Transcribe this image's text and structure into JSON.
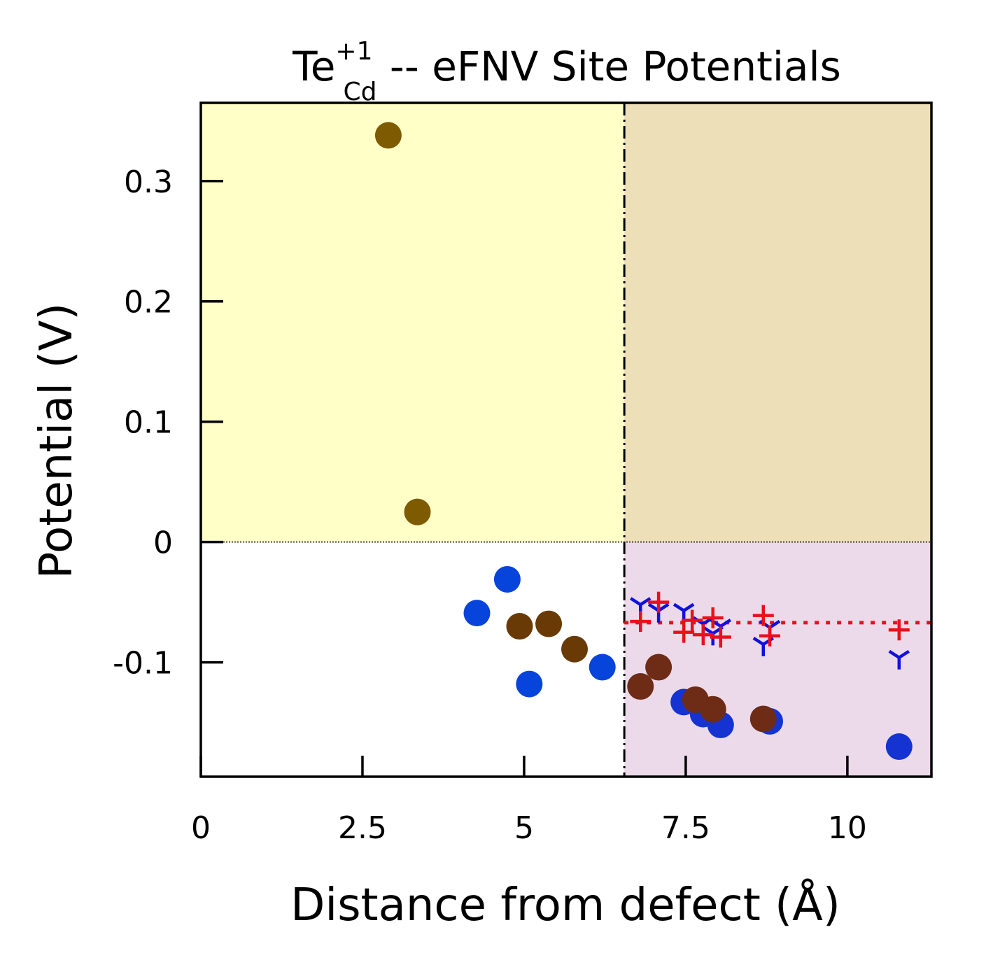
{
  "chart_data": {
    "type": "scatter",
    "title": {
      "base": "Te",
      "sup": "+1",
      "sub": "Cd",
      "rest": " -- eFNV Site Potentials"
    },
    "xlabel": "Distance from defect (Å)",
    "ylabel": "Potential (V)",
    "xlim": [
      0,
      11.3
    ],
    "ylim": [
      -0.195,
      0.365
    ],
    "xticks": [
      {
        "value": 0,
        "label": "0"
      },
      {
        "value": 2.5,
        "label": "2.5"
      },
      {
        "value": 5,
        "label": "5"
      },
      {
        "value": 7.5,
        "label": "7.5"
      },
      {
        "value": 10,
        "label": "10"
      }
    ],
    "yticks": [
      {
        "value": 0.3,
        "label": "0.3"
      },
      {
        "value": 0.2,
        "label": "0.2"
      },
      {
        "value": 0.1,
        "label": "0.1"
      },
      {
        "value": 0,
        "label": "0"
      },
      {
        "value": -0.1,
        "label": "-0.1"
      }
    ],
    "sampling_radius": 6.55,
    "average_potential": -0.067,
    "zero_line": 0,
    "regions": {
      "upper_left_color": "#ffffc8",
      "upper_right_color": "#ede0b8",
      "lower_left_color": "#ffffff",
      "lower_right_color": "#ecdaeb"
    },
    "colors": {
      "te_sites": "#7e5a00",
      "cd_sites_near": "#0744dc",
      "te_sites_near": "#6a3a06",
      "cd_sites_far": "#1533d0",
      "te_sites_far": "#6e2c16",
      "cross_marker": "#e8101a",
      "tri_marker": "#1010e0",
      "average_line": "#e8101a"
    },
    "series": [
      {
        "marker": "circle",
        "color_key": "te_sites",
        "points": [
          [
            2.9,
            0.338
          ],
          [
            3.35,
            0.025
          ]
        ]
      },
      {
        "marker": "circle",
        "color_key": "cd_sites_near",
        "points": [
          [
            4.27,
            -0.059
          ],
          [
            4.74,
            -0.031
          ],
          [
            5.08,
            -0.118
          ],
          [
            6.21,
            -0.104
          ]
        ]
      },
      {
        "marker": "circle",
        "color_key": "te_sites_near",
        "points": [
          [
            4.93,
            -0.07
          ],
          [
            5.38,
            -0.068
          ],
          [
            5.78,
            -0.089
          ]
        ]
      },
      {
        "marker": "circle",
        "color_key": "cd_sites_far",
        "points": [
          [
            7.47,
            -0.133
          ],
          [
            7.77,
            -0.143
          ],
          [
            8.04,
            -0.152
          ],
          [
            8.8,
            -0.149
          ],
          [
            10.8,
            -0.17
          ]
        ]
      },
      {
        "marker": "circle",
        "color_key": "te_sites_far",
        "points": [
          [
            6.8,
            -0.12
          ],
          [
            7.08,
            -0.104
          ],
          [
            7.65,
            -0.131
          ],
          [
            7.92,
            -0.139
          ],
          [
            8.7,
            -0.147
          ]
        ]
      },
      {
        "marker": "tri",
        "color_key": "tri_marker",
        "points": [
          [
            6.8,
            -0.052
          ],
          [
            7.08,
            -0.057
          ],
          [
            7.47,
            -0.057
          ],
          [
            7.77,
            -0.068
          ],
          [
            7.92,
            -0.076
          ],
          [
            8.04,
            -0.07
          ],
          [
            8.7,
            -0.085
          ],
          [
            8.8,
            -0.071
          ],
          [
            10.8,
            -0.096
          ]
        ]
      },
      {
        "marker": "cross",
        "color_key": "cross_marker",
        "points": [
          [
            6.8,
            -0.066
          ],
          [
            7.08,
            -0.05
          ],
          [
            7.47,
            -0.075
          ],
          [
            7.6,
            -0.065
          ],
          [
            7.77,
            -0.077
          ],
          [
            7.92,
            -0.063
          ],
          [
            8.04,
            -0.079
          ],
          [
            8.7,
            -0.061
          ],
          [
            8.8,
            -0.078
          ],
          [
            10.8,
            -0.073
          ]
        ]
      }
    ]
  }
}
